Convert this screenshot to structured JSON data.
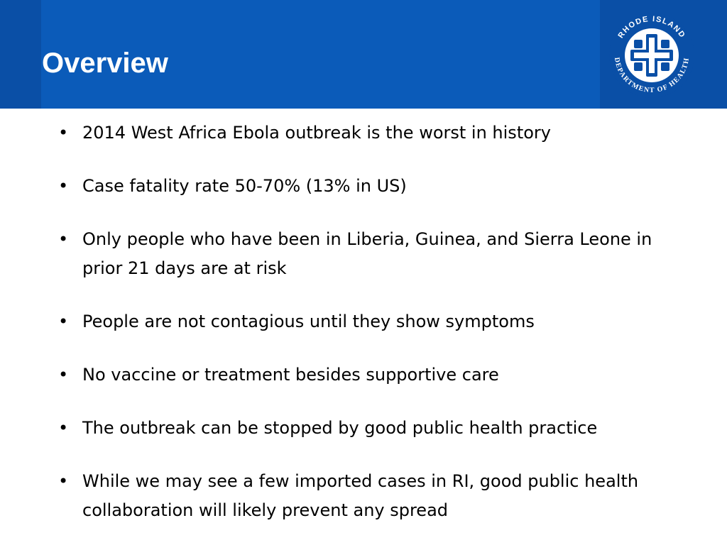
{
  "slide": {
    "title": "Overview",
    "logo": {
      "icon": "rhode-island-department-of-health-seal",
      "text": "RHODE ISLAND DEPARTMENT OF HEALTH"
    },
    "bullets": [
      "2014 West Africa Ebola outbreak is the worst in history",
      "Case fatality rate 50-70% (13% in US)",
      "Only people who have been in Liberia, Guinea, and Sierra Leone in prior 21 days are at risk",
      "People are not contagious until they show symptoms",
      "No vaccine or treatment besides supportive care",
      "The outbreak can be stopped by good public health practice",
      "While we may see a few imported cases in RI, good public health collaboration will likely prevent any spread"
    ],
    "bullet_symbol": "•"
  },
  "colors": {
    "header_blue": "#0b5bb9",
    "header_dark_blue": "#0a4fa6",
    "text": "#000000",
    "title": "#ffffff"
  }
}
